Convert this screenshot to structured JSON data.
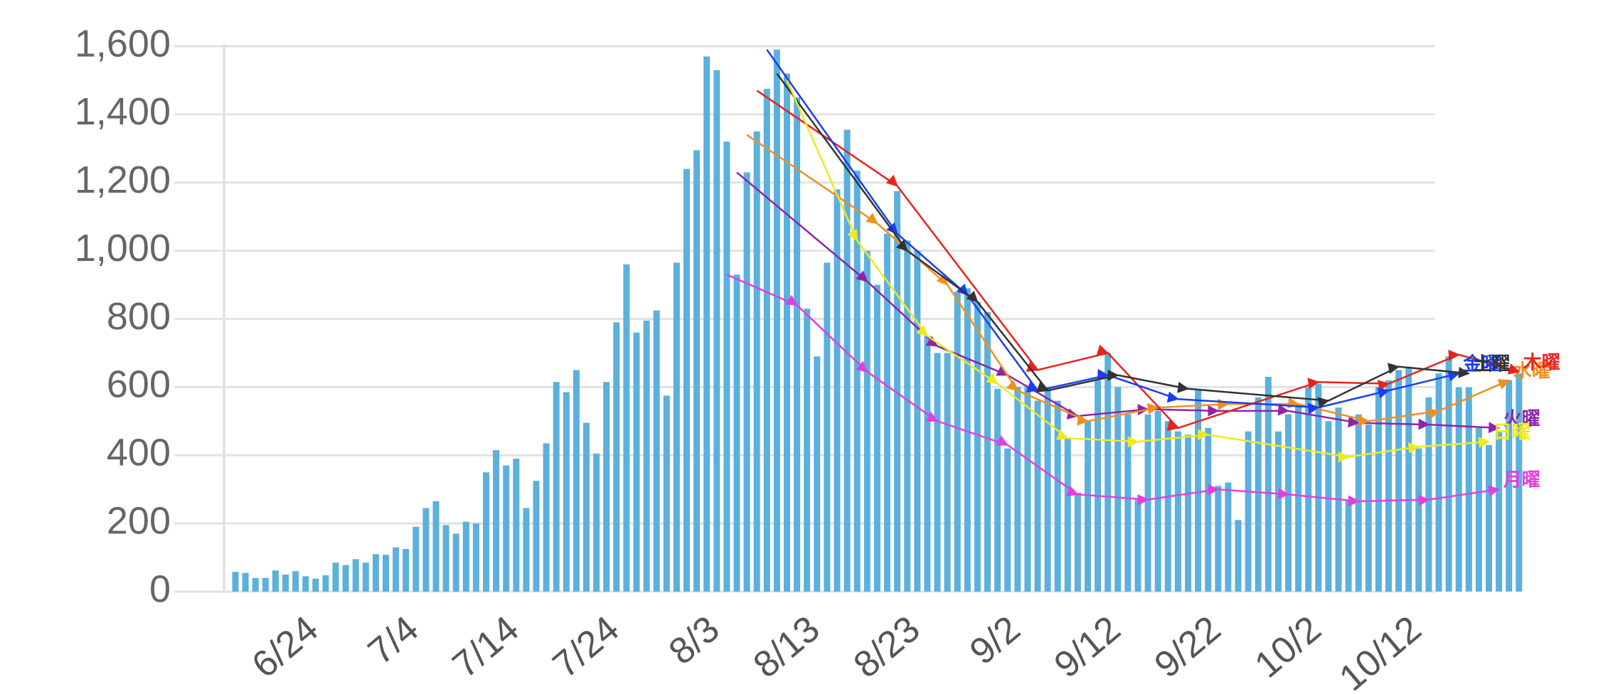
{
  "chart_data": {
    "type": "bar",
    "categories": [
      null,
      null,
      null,
      null,
      null,
      null,
      null,
      null,
      null,
      null,
      "6/24",
      null,
      null,
      null,
      null,
      null,
      null,
      null,
      null,
      null,
      "7/4",
      null,
      null,
      null,
      null,
      null,
      null,
      null,
      null,
      null,
      "7/14",
      null,
      null,
      null,
      null,
      null,
      null,
      null,
      null,
      null,
      "7/24",
      null,
      null,
      null,
      null,
      null,
      null,
      null,
      null,
      null,
      "8/3",
      null,
      null,
      null,
      null,
      null,
      null,
      null,
      null,
      null,
      "8/13",
      null,
      null,
      null,
      null,
      null,
      null,
      null,
      null,
      null,
      "8/23",
      null,
      null,
      null,
      null,
      null,
      null,
      null,
      null,
      null,
      "9/2",
      null,
      null,
      null,
      null,
      null,
      null,
      null,
      null,
      null,
      "9/12",
      null,
      null,
      null,
      null,
      null,
      null,
      null,
      null,
      null,
      "9/22",
      null,
      null,
      null,
      null,
      null,
      null,
      null,
      null,
      null,
      "10/2",
      null,
      null,
      null,
      null,
      null,
      null,
      null,
      null,
      null,
      "10/12",
      null,
      null,
      null,
      null,
      null,
      null,
      null,
      null
    ],
    "values": [
      58,
      55,
      40,
      40,
      62,
      50,
      60,
      45,
      38,
      48,
      85,
      78,
      95,
      85,
      110,
      108,
      130,
      125,
      190,
      245,
      265,
      195,
      170,
      205,
      200,
      350,
      415,
      370,
      390,
      245,
      325,
      435,
      615,
      585,
      650,
      495,
      405,
      615,
      790,
      960,
      760,
      795,
      825,
      575,
      965,
      1240,
      1295,
      1570,
      1530,
      1320,
      930,
      1230,
      1350,
      1475,
      1590,
      1520,
      1450,
      830,
      690,
      965,
      1180,
      1355,
      1235,
      1000,
      900,
      1050,
      1175,
      1030,
      1000,
      750,
      700,
      700,
      880,
      890,
      850,
      820,
      595,
      420,
      600,
      600,
      560,
      600,
      560,
      450,
      290,
      500,
      620,
      700,
      600,
      520,
      270,
      520,
      530,
      500,
      470,
      460,
      590,
      480,
      310,
      320,
      210,
      470,
      570,
      630,
      470,
      520,
      550,
      600,
      610,
      500,
      540,
      270,
      520,
      490,
      600,
      620,
      650,
      660,
      420,
      570,
      640,
      690,
      600,
      600,
      480,
      430,
      470,
      620,
      640
    ],
    "color": "#5cb0dc",
    "ylim": [
      0,
      1600
    ],
    "yticks": [
      0,
      200,
      400,
      600,
      800,
      {
        "value": 1000,
        "label": "1,000"
      },
      {
        "value": 1200,
        "label": "1,200"
      },
      {
        "value": 1400,
        "label": "1,400"
      },
      {
        "value": 1600,
        "label": "1,600"
      }
    ],
    "grid": true,
    "series": [
      {
        "name": "月曜",
        "type": "line",
        "color": "#e040e0",
        "x": [
          49,
          56,
          63,
          70,
          77,
          84,
          91,
          98,
          105,
          112,
          119,
          126
        ],
        "values": [
          930,
          840,
          645,
          500,
          430,
          285,
          270,
          300,
          285,
          265,
          270,
          300
        ]
      },
      {
        "name": "火曜",
        "type": "line",
        "color": "#8e24aa",
        "x": [
          50,
          63,
          70,
          77,
          84,
          91,
          98,
          105,
          112,
          119,
          126
        ],
        "values": [
          1230,
          910,
          720,
          635,
          515,
          535,
          530,
          530,
          495,
          490,
          480
        ]
      },
      {
        "name": "水曜",
        "type": "line",
        "color": "#f0901e",
        "x": [
          51,
          64,
          71,
          78,
          85,
          92,
          99,
          106,
          113,
          120,
          127
        ],
        "values": [
          1340,
          1080,
          900,
          590,
          500,
          540,
          550,
          550,
          500,
          530,
          620
        ]
      },
      {
        "name": "木曜",
        "type": "line",
        "color": "#e8231c",
        "x": [
          52,
          66,
          80,
          87,
          94,
          108,
          115,
          122,
          128
        ],
        "values": [
          1470,
          1190,
          650,
          700,
          480,
          615,
          610,
          695,
          645
        ]
      },
      {
        "name": "金曜",
        "type": "line",
        "color": "#1a3ef0",
        "x": [
          53,
          66,
          73,
          80,
          87,
          94,
          108,
          115,
          122
        ],
        "values": [
          1590,
          1050,
          870,
          590,
          635,
          565,
          540,
          590,
          640
        ]
      },
      {
        "name": "土曜",
        "type": "line",
        "color": "#333333",
        "x": [
          54,
          67,
          74,
          81,
          88,
          95,
          109,
          116,
          123
        ],
        "values": [
          1520,
          1000,
          850,
          590,
          635,
          595,
          560,
          660,
          640
        ]
      },
      {
        "name": "日曜",
        "type": "line",
        "color": "#eeea1e",
        "x": [
          55,
          62,
          69,
          76,
          83,
          90,
          97,
          111,
          118,
          125
        ],
        "values": [
          1500,
          1030,
          750,
          610,
          450,
          440,
          460,
          395,
          425,
          440
        ]
      }
    ]
  }
}
